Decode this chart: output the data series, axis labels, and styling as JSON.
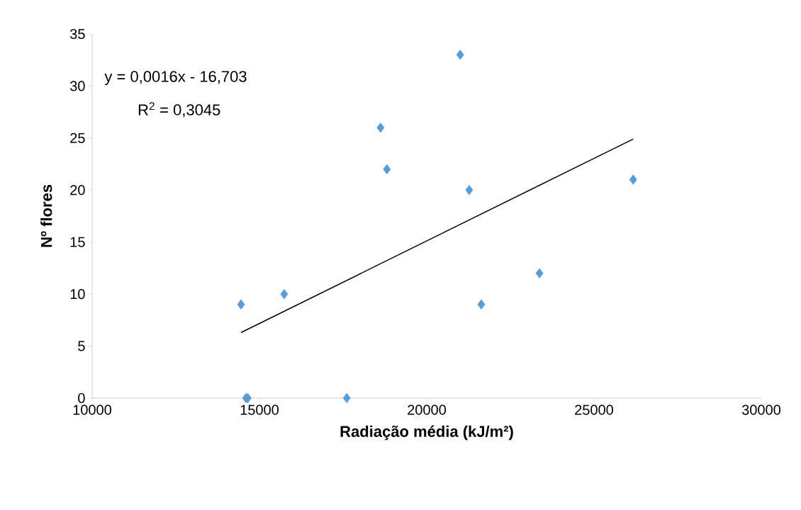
{
  "chart_data": {
    "type": "scatter",
    "xlabel": "Radiação média (kJ/m²)",
    "ylabel": "Nº flores",
    "annotations": [
      "y = 0,0016x - 16,703",
      "R$^{2}$ = 0,3045"
    ],
    "series": [
      {
        "color": "#5b9bd5",
        "marker": "diamond",
        "x": [
          14450,
          14600,
          14650,
          15740,
          17610,
          18620,
          18810,
          21000,
          21270,
          21630,
          23370,
          26170
        ],
        "values": [
          9,
          0,
          0,
          10,
          0,
          26,
          22,
          33,
          20,
          9,
          12,
          21
        ]
      },
      {
        "type": "line",
        "color": "#000000",
        "marker": "none",
        "x": [
          14450,
          26170
        ],
        "values": [
          6.3,
          24.9
        ]
      }
    ],
    "xlim": [
      10000,
      30000
    ],
    "xticks": [
      10000,
      15000,
      20000,
      25000,
      30000
    ],
    "ylim": [
      0,
      35
    ],
    "yticks": [
      0,
      5,
      10,
      15,
      20,
      25,
      30,
      35
    ],
    "grid": false
  }
}
